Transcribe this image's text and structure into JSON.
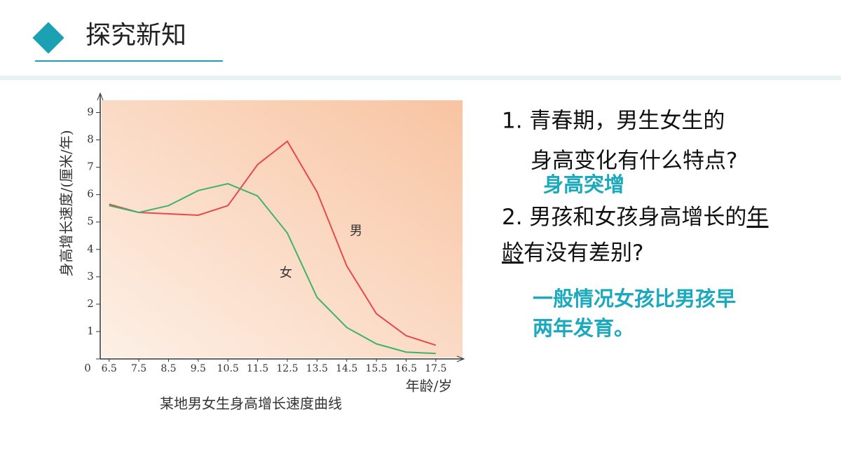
{
  "header": {
    "title": "探究新知"
  },
  "chart_data": {
    "type": "line",
    "caption": "某地男女生身高增长速度曲线",
    "y_label": "身高增长速度/(厘米/年)",
    "x_label": "年龄/岁",
    "x": [
      6.5,
      7.5,
      8.5,
      9.5,
      10.5,
      11.5,
      12.5,
      13.5,
      14.5,
      15.5,
      16.5,
      17.5
    ],
    "series": [
      {
        "name": "男",
        "color": "#e8484a",
        "values": [
          5.65,
          5.35,
          5.3,
          5.25,
          5.6,
          7.1,
          7.95,
          6.1,
          3.4,
          1.65,
          0.85,
          0.5
        ]
      },
      {
        "name": "女",
        "color": "#3cb46e",
        "values": [
          5.6,
          5.35,
          5.6,
          6.15,
          6.4,
          5.95,
          4.6,
          2.25,
          1.15,
          0.55,
          0.25,
          0.2
        ]
      }
    ],
    "xlim": [
      6.2,
      18.4
    ],
    "xticks": [
      6.5,
      7.5,
      8.5,
      9.5,
      10.5,
      11.5,
      12.5,
      13.5,
      14.5,
      15.5,
      16.5,
      17.5
    ],
    "ylim": [
      0,
      9.5
    ],
    "yticks": [
      0,
      1,
      2,
      3,
      4,
      5,
      6,
      7,
      8,
      9
    ]
  },
  "questions": [
    {
      "lines": [
        "1. 青春期，男生女生的",
        "身高变化有什么特点?"
      ]
    },
    {
      "parts": [
        "2. 男孩和女孩身高增长的",
        "年",
        "龄",
        "有没有差别?"
      ]
    }
  ],
  "answers": [
    [
      "身高突增"
    ],
    [
      "一般情况女孩比男孩早",
      "两年发育。"
    ]
  ]
}
